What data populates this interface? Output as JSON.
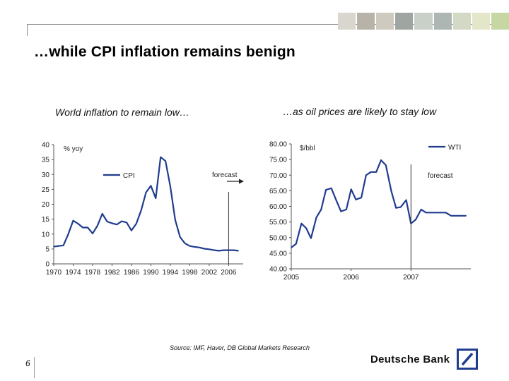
{
  "slide": {
    "title": "…while CPI inflation remains benign",
    "source": "Source: IMF, Haver, DB Global Markets Research",
    "page_number": "6",
    "brand": "Deutsche Bank",
    "accent_color": "#1f3c8f"
  },
  "chart_data": [
    {
      "type": "line",
      "title": "World inflation to remain low…",
      "unit_label": "% yoy",
      "legend": "CPI",
      "annotation": "forecast",
      "series_color": "#1f3c8f",
      "ylim": [
        0,
        40
      ],
      "yticks": [
        0,
        5,
        10,
        15,
        20,
        25,
        30,
        35,
        40
      ],
      "xlim": [
        1970,
        2009
      ],
      "xtick_labels": [
        "1970",
        "1974",
        "1978",
        "1982",
        "1986",
        "1990",
        "1994",
        "1998",
        "2002",
        "2006"
      ],
      "forecast_x": 2006,
      "series": [
        {
          "x": [
            1970,
            1971,
            1972,
            1973,
            1974,
            1975,
            1976,
            1977,
            1978,
            1979,
            1980,
            1981,
            1982,
            1983,
            1984,
            1985,
            1986,
            1987,
            1988,
            1989,
            1990,
            1991,
            1992,
            1993,
            1994,
            1995,
            1996,
            1997,
            1998,
            1999,
            2000,
            2001,
            2002,
            2003,
            2004,
            2005,
            2006,
            2007,
            2008
          ],
          "values": [
            5.8,
            6.0,
            6.2,
            10.0,
            14.5,
            13.5,
            12.2,
            12.2,
            10.2,
            12.8,
            16.8,
            14.2,
            13.6,
            13.2,
            14.3,
            13.9,
            11.2,
            13.5,
            18.0,
            24.0,
            26.2,
            22.0,
            35.8,
            34.5,
            26.0,
            14.8,
            9.0,
            6.9,
            6.0,
            5.7,
            5.5,
            5.1,
            4.9,
            4.6,
            4.4,
            4.6,
            4.6,
            4.6,
            4.4
          ]
        }
      ]
    },
    {
      "type": "line",
      "title": "…as oil prices are likely to stay low",
      "unit_label": "$/bbl",
      "legend": "WTI",
      "annotation": "forecast",
      "series_color": "#1f3c8f",
      "ylim": [
        40,
        80
      ],
      "yticks": [
        "40.00",
        "45.00",
        "50.00",
        "55.00",
        "60.00",
        "65.00",
        "70.00",
        "75.00",
        "80.00"
      ],
      "xlim": [
        2005,
        2008
      ],
      "xtick_labels": [
        "2005",
        "2006",
        "2007"
      ],
      "forecast_x": 2007,
      "series": [
        {
          "x": [
            2005.0,
            2005.08,
            2005.17,
            2005.25,
            2005.33,
            2005.42,
            2005.5,
            2005.58,
            2005.67,
            2005.75,
            2005.83,
            2005.92,
            2006.0,
            2006.08,
            2006.17,
            2006.25,
            2006.33,
            2006.42,
            2006.5,
            2006.58,
            2006.67,
            2006.75,
            2006.83,
            2006.92,
            2007.0,
            2007.08,
            2007.17,
            2007.25,
            2007.33,
            2007.42,
            2007.5,
            2007.58,
            2007.67,
            2007.75,
            2007.83,
            2007.92
          ],
          "values": [
            46.8,
            48.0,
            54.5,
            53.0,
            49.8,
            56.5,
            59.0,
            65.3,
            65.8,
            62.0,
            58.4,
            59.0,
            65.5,
            62.2,
            62.8,
            70.0,
            71.0,
            71.0,
            74.8,
            73.2,
            65.0,
            59.5,
            59.8,
            62.0,
            54.5,
            55.8,
            59.0,
            58.0,
            58.0,
            58.0,
            58.0,
            58.0,
            57.0,
            57.0,
            57.0,
            57.0
          ]
        }
      ]
    }
  ]
}
